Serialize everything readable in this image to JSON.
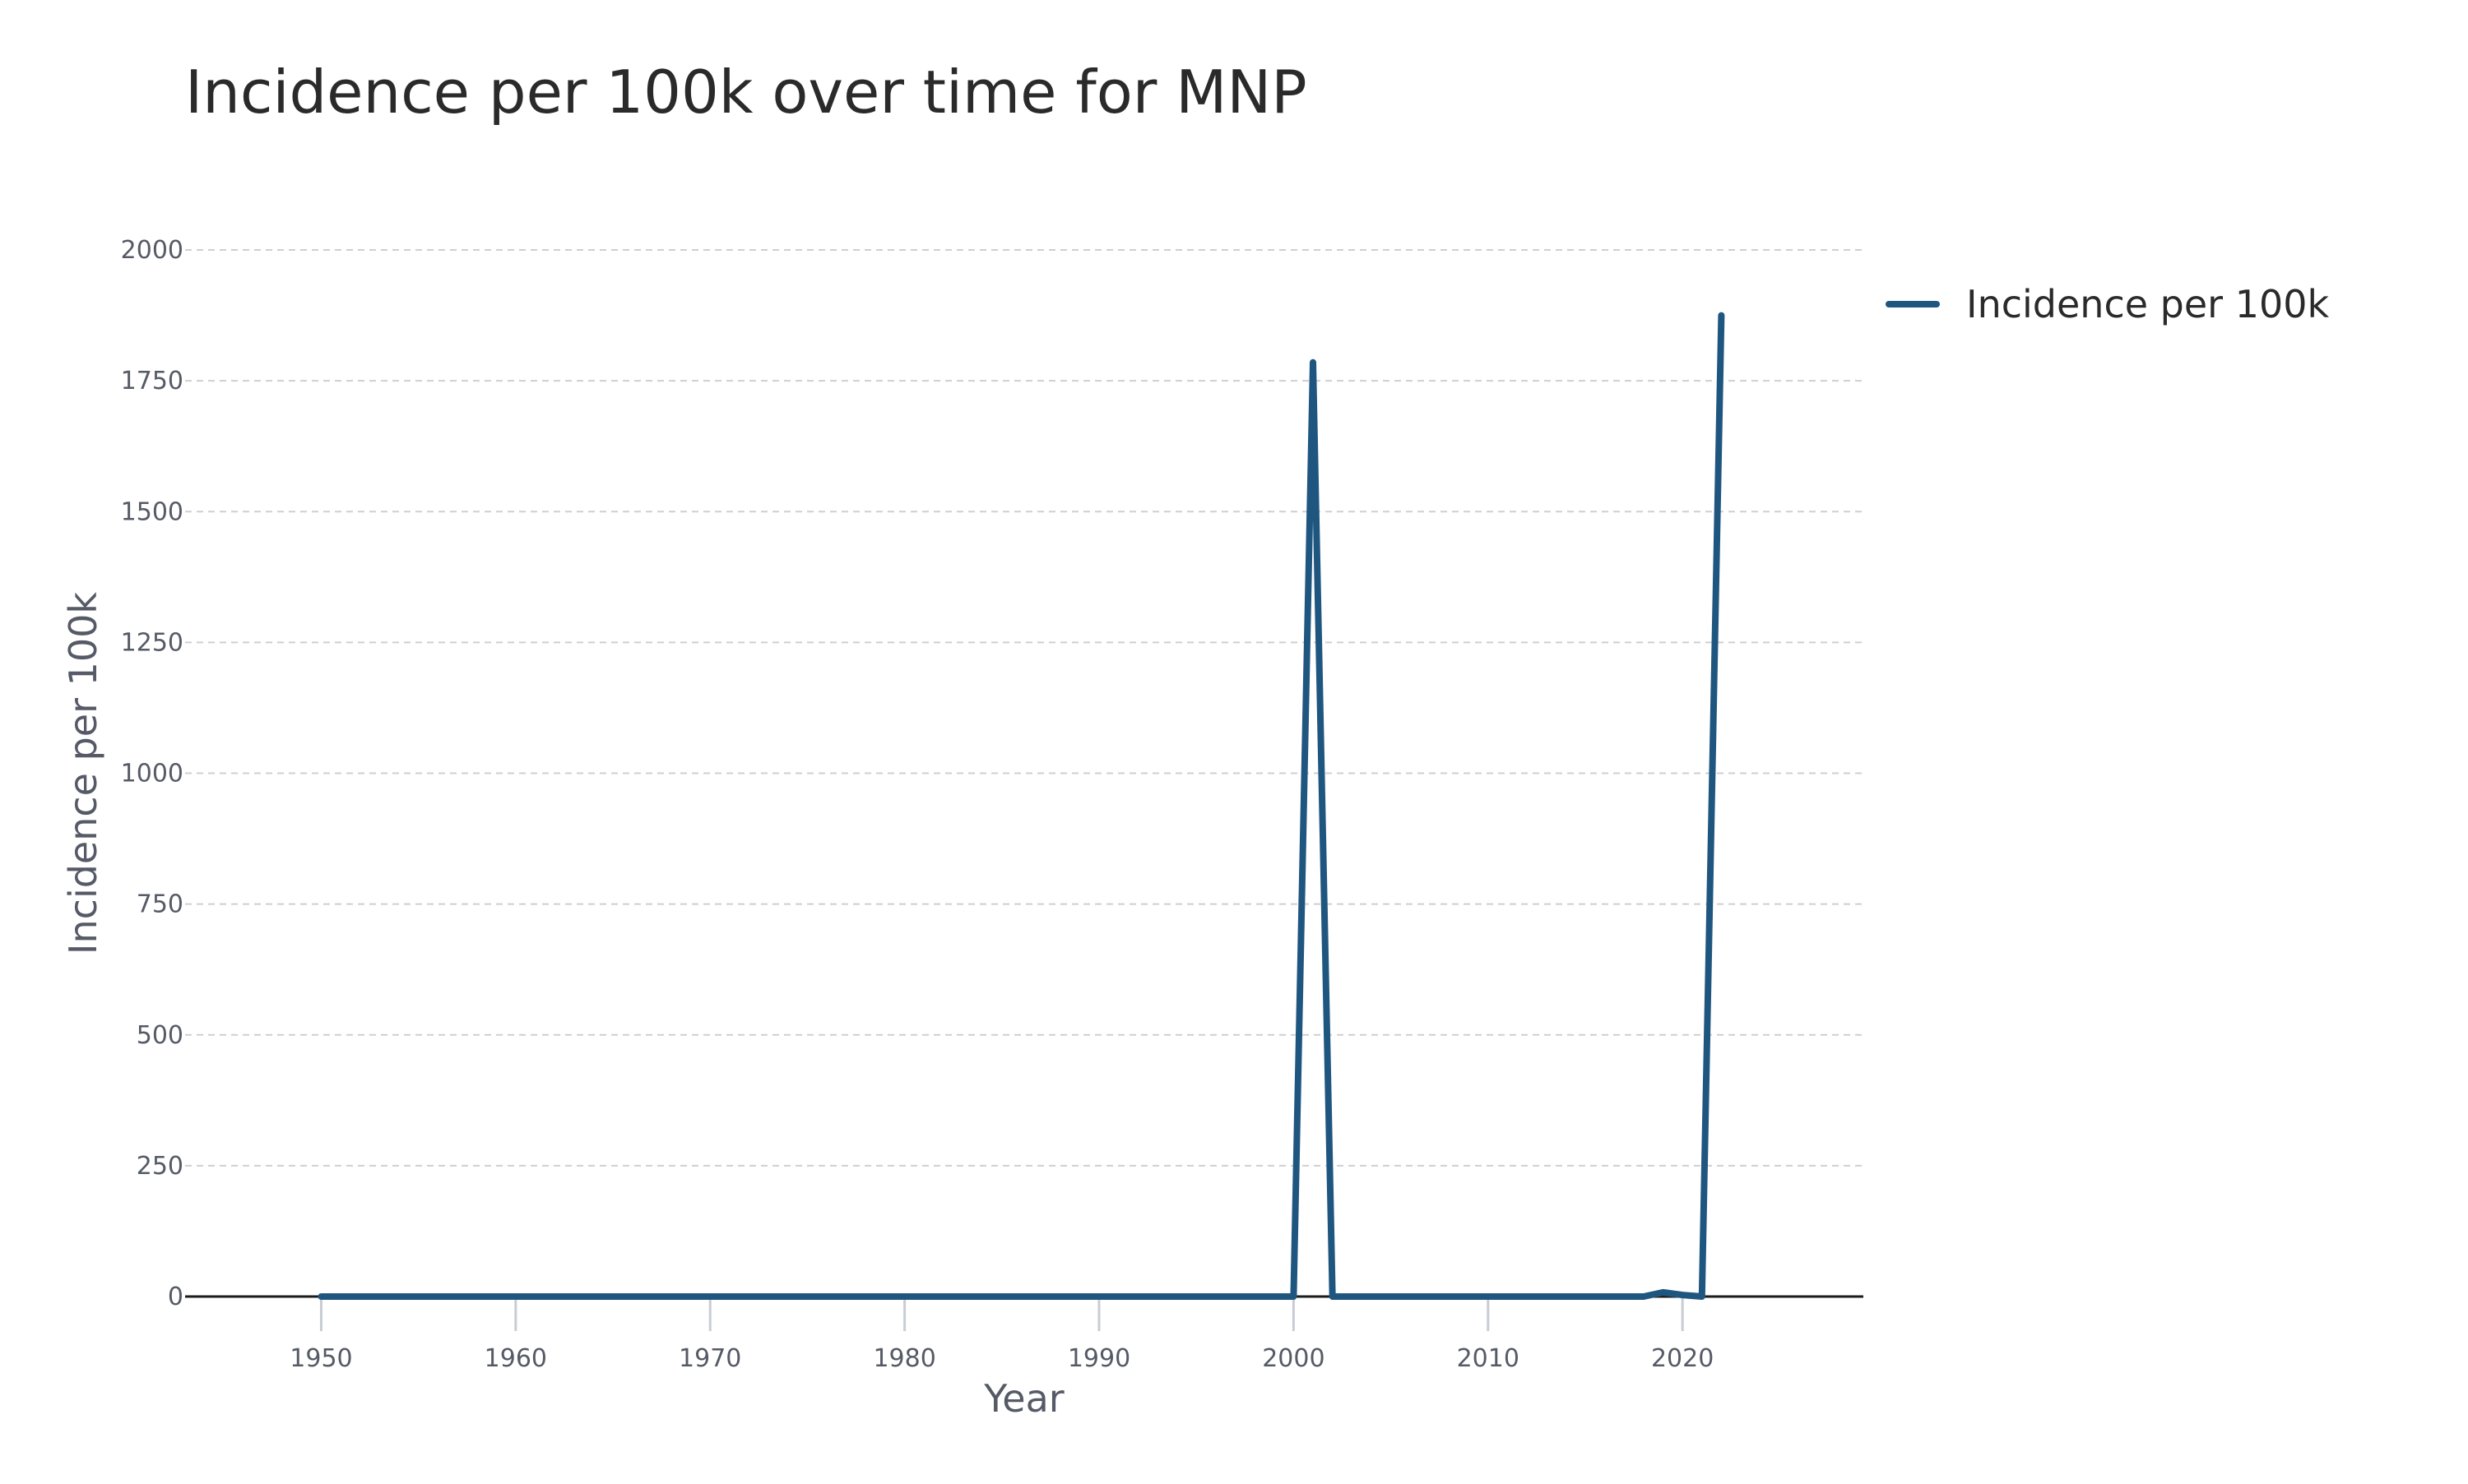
{
  "chart_data": {
    "type": "line",
    "title": "Incidence per 100k over time for MNP",
    "xlabel": "Year",
    "ylabel": "Incidence per 100k",
    "xlim": [
      1943,
      2029.3
    ],
    "ylim": [
      0,
      2000
    ],
    "x_ticks": [
      1950,
      1960,
      1970,
      1980,
      1990,
      2000,
      2010,
      2020
    ],
    "y_ticks": [
      0,
      250,
      500,
      750,
      1000,
      1250,
      1500,
      1750,
      2000
    ],
    "grid": "horizontal dashed",
    "legend_position": "top-right, outside plot",
    "series": [
      {
        "name": "Incidence per 100k",
        "color": "#1f5680",
        "x": [
          1950,
          1960,
          1970,
          1980,
          1990,
          2000,
          2001,
          2002,
          2010,
          2018,
          2019,
          2020,
          2021,
          2022
        ],
        "y": [
          0,
          0,
          0,
          0,
          0,
          0,
          1785,
          0,
          0,
          0,
          8,
          3,
          0,
          1875
        ]
      }
    ]
  }
}
